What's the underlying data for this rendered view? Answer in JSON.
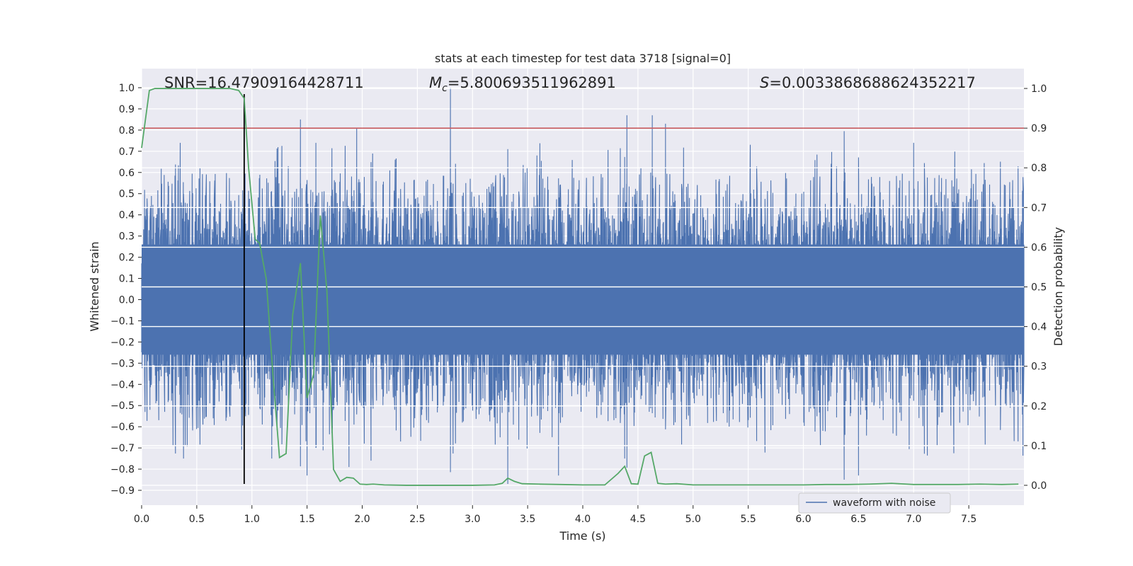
{
  "chart_data": {
    "type": "line",
    "title": "stats at each timestep for test data 3718 [signal=0]",
    "xlabel": "Time (s)",
    "ylabel_left": "Whitened strain",
    "ylabel_right": "Detection probability",
    "xlim": [
      0,
      8.0
    ],
    "ylim_left": [
      -0.97,
      1.09
    ],
    "ylim_right": [
      -0.05,
      1.05
    ],
    "x_ticks": [
      "0.0",
      "0.5",
      "1.0",
      "1.5",
      "2.0",
      "2.5",
      "3.0",
      "3.5",
      "4.0",
      "4.5",
      "5.0",
      "5.5",
      "6.0",
      "6.5",
      "7.0",
      "7.5"
    ],
    "x_tick_values": [
      0,
      0.5,
      1,
      1.5,
      2,
      2.5,
      3,
      3.5,
      4,
      4.5,
      5,
      5.5,
      6,
      6.5,
      7,
      7.5
    ],
    "y_left_ticks": [
      "1.0",
      "0.9",
      "0.8",
      "0.7",
      "0.6",
      "0.5",
      "0.4",
      "0.3",
      "0.2",
      "0.1",
      "0.0",
      "−0.1",
      "−0.2",
      "−0.3",
      "−0.4",
      "−0.5",
      "−0.6",
      "−0.7",
      "−0.8",
      "−0.9"
    ],
    "y_left_tick_values": [
      1.0,
      0.9,
      0.8,
      0.7,
      0.6,
      0.5,
      0.4,
      0.3,
      0.2,
      0.1,
      0.0,
      -0.1,
      -0.2,
      -0.3,
      -0.4,
      -0.5,
      -0.6,
      -0.7,
      -0.8,
      -0.9
    ],
    "y_right_ticks": [
      "1.0",
      "0.9",
      "0.8",
      "0.7",
      "0.6",
      "0.5",
      "0.4",
      "0.3",
      "0.2",
      "0.1",
      "0.0"
    ],
    "y_right_tick_values": [
      1.0,
      0.9,
      0.8,
      0.7,
      0.6,
      0.5,
      0.4,
      0.3,
      0.2,
      0.1,
      0.0
    ],
    "annotations": {
      "snr": "SNR=16.47909164428711",
      "mc_symbol": "M",
      "mc_sub": "c",
      "mc_value": "=5.800693511962891",
      "s_symbol": "S",
      "s_value": "=0.0033868688624352217"
    },
    "threshold_line": {
      "value": 0.9,
      "axis": "right",
      "color": "#c44e52"
    },
    "marker_line": {
      "x": 0.93,
      "y_range": [
        -0.87,
        0.97
      ],
      "axis": "left",
      "color": "#000000"
    },
    "waveform": {
      "name": "waveform with noise",
      "color": "#4c72b0",
      "samples": 1800,
      "dense_band": [
        -0.26,
        0.26
      ],
      "upper_spikes": [
        {
          "x": 1.44,
          "y": 0.85
        },
        {
          "x": 1.95,
          "y": 0.81
        },
        {
          "x": 2.8,
          "y": 1.0
        },
        {
          "x": 4.4,
          "y": 0.87
        },
        {
          "x": 4.63,
          "y": 0.87
        },
        {
          "x": 4.75,
          "y": 0.83
        },
        {
          "x": 0.35,
          "y": 0.74
        },
        {
          "x": 1.58,
          "y": 0.74
        },
        {
          "x": 7.0,
          "y": 0.74
        }
      ],
      "lower_spikes": [
        {
          "x": 3.32,
          "y": -0.87
        },
        {
          "x": 6.37,
          "y": -0.85
        },
        {
          "x": 1.5,
          "y": -0.83
        },
        {
          "x": 6.5,
          "y": -0.83
        },
        {
          "x": 3.78,
          "y": -0.83
        },
        {
          "x": 1.88,
          "y": -0.79
        },
        {
          "x": 0.38,
          "y": -0.75
        },
        {
          "x": 1.18,
          "y": -0.75
        },
        {
          "x": 2.08,
          "y": -0.76
        },
        {
          "x": 4.38,
          "y": -0.75
        }
      ]
    },
    "probability": {
      "name": "detection probability",
      "color": "#55a868",
      "x": [
        0.0,
        0.07,
        0.12,
        0.2,
        0.3,
        0.4,
        0.5,
        0.6,
        0.7,
        0.8,
        0.88,
        0.93,
        0.97,
        1.03,
        1.07,
        1.13,
        1.19,
        1.25,
        1.31,
        1.37,
        1.44,
        1.5,
        1.56,
        1.62,
        1.68,
        1.74,
        1.8,
        1.86,
        1.92,
        1.98,
        2.04,
        2.1,
        2.2,
        2.4,
        2.6,
        2.8,
        3.0,
        3.2,
        3.27,
        3.32,
        3.38,
        3.45,
        3.6,
        3.8,
        4.0,
        4.2,
        4.32,
        4.38,
        4.44,
        4.5,
        4.56,
        4.62,
        4.68,
        4.75,
        4.85,
        5.0,
        5.2,
        5.4,
        5.6,
        5.8,
        6.0,
        6.2,
        6.4,
        6.6,
        6.8,
        7.0,
        7.2,
        7.4,
        7.6,
        7.8,
        7.95
      ],
      "y": [
        0.85,
        0.995,
        1.0,
        1.0,
        1.0,
        1.0,
        1.0,
        1.0,
        1.0,
        1.0,
        0.995,
        0.975,
        0.8,
        0.62,
        0.61,
        0.52,
        0.28,
        0.07,
        0.08,
        0.43,
        0.56,
        0.22,
        0.28,
        0.68,
        0.49,
        0.04,
        0.01,
        0.02,
        0.018,
        0.003,
        0.002,
        0.003,
        0.001,
        0.0,
        0.0,
        0.0,
        0.0,
        0.001,
        0.005,
        0.018,
        0.01,
        0.004,
        0.003,
        0.002,
        0.001,
        0.001,
        0.03,
        0.048,
        0.004,
        0.003,
        0.074,
        0.083,
        0.005,
        0.003,
        0.004,
        0.001,
        0.001,
        0.001,
        0.001,
        0.001,
        0.001,
        0.002,
        0.002,
        0.003,
        0.005,
        0.002,
        0.002,
        0.002,
        0.003,
        0.002,
        0.003
      ]
    },
    "legend": {
      "label": "waveform with noise",
      "position": "lower-right"
    }
  }
}
